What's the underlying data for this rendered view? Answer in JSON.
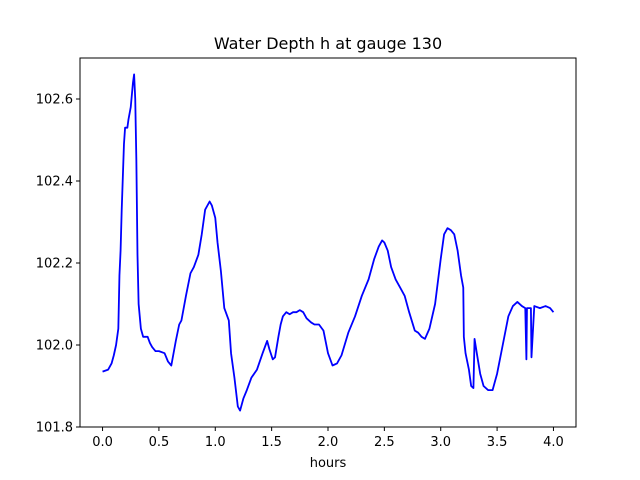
{
  "chart_data": {
    "type": "line",
    "title": "Water Depth h at gauge 130",
    "xlabel": "hours",
    "ylabel": "",
    "xlim": [
      -0.2,
      4.2
    ],
    "ylim": [
      101.8,
      102.7
    ],
    "xticks": [
      0.0,
      0.5,
      1.0,
      1.5,
      2.0,
      2.5,
      3.0,
      3.5,
      4.0
    ],
    "xtick_labels": [
      "0.0",
      "0.5",
      "1.0",
      "1.5",
      "2.0",
      "2.5",
      "3.0",
      "3.5",
      "4.0"
    ],
    "yticks": [
      101.8,
      102.0,
      102.2,
      102.4,
      102.6
    ],
    "ytick_labels": [
      "101.8",
      "102.0",
      "102.2",
      "102.4",
      "102.6"
    ],
    "grid": false,
    "series": [
      {
        "color": "#0000ff",
        "x": [
          0.0,
          0.05,
          0.08,
          0.1,
          0.12,
          0.14,
          0.15,
          0.16,
          0.17,
          0.19,
          0.2,
          0.22,
          0.23,
          0.25,
          0.27,
          0.28,
          0.29,
          0.3,
          0.31,
          0.32,
          0.34,
          0.36,
          0.4,
          0.42,
          0.44,
          0.47,
          0.5,
          0.55,
          0.58,
          0.61,
          0.65,
          0.68,
          0.7,
          0.74,
          0.78,
          0.81,
          0.85,
          0.88,
          0.91,
          0.95,
          0.97,
          1.0,
          1.02,
          1.05,
          1.08,
          1.12,
          1.14,
          1.17,
          1.2,
          1.22,
          1.25,
          1.28,
          1.32,
          1.37,
          1.42,
          1.46,
          1.48,
          1.51,
          1.53,
          1.56,
          1.58,
          1.6,
          1.63,
          1.66,
          1.69,
          1.72,
          1.75,
          1.78,
          1.81,
          1.85,
          1.88,
          1.92,
          1.96,
          2.0,
          2.04,
          2.08,
          2.12,
          2.18,
          2.24,
          2.3,
          2.36,
          2.41,
          2.45,
          2.48,
          2.5,
          2.53,
          2.56,
          2.6,
          2.64,
          2.68,
          2.72,
          2.77,
          2.8,
          2.83,
          2.86,
          2.9,
          2.95,
          3.0,
          3.03,
          3.06,
          3.09,
          3.12,
          3.15,
          3.18,
          3.2,
          3.205,
          3.22,
          3.25,
          3.27,
          3.29,
          3.3,
          3.32,
          3.35,
          3.38,
          3.42,
          3.46,
          3.5,
          3.55,
          3.6,
          3.64,
          3.68,
          3.72,
          3.75,
          3.76,
          3.765,
          3.8,
          3.805,
          3.83,
          3.88,
          3.93,
          3.97,
          4.0
        ],
        "values": [
          101.935,
          101.94,
          101.955,
          101.975,
          102.0,
          102.04,
          102.17,
          102.23,
          102.33,
          102.49,
          102.53,
          102.53,
          102.55,
          102.58,
          102.64,
          102.66,
          102.6,
          102.45,
          102.22,
          102.1,
          102.04,
          102.02,
          102.02,
          102.005,
          101.995,
          101.985,
          101.985,
          101.98,
          101.96,
          101.95,
          102.01,
          102.05,
          102.06,
          102.12,
          102.175,
          102.19,
          102.22,
          102.27,
          102.33,
          102.35,
          102.34,
          102.31,
          102.25,
          102.18,
          102.09,
          102.06,
          101.98,
          101.92,
          101.85,
          101.84,
          101.87,
          101.89,
          101.92,
          101.94,
          101.98,
          102.01,
          101.99,
          101.965,
          101.97,
          102.02,
          102.05,
          102.07,
          102.08,
          102.075,
          102.08,
          102.08,
          102.085,
          102.08,
          102.065,
          102.055,
          102.05,
          102.05,
          102.035,
          101.98,
          101.95,
          101.955,
          101.975,
          102.03,
          102.07,
          102.12,
          102.16,
          102.21,
          102.24,
          102.255,
          102.25,
          102.23,
          102.19,
          102.16,
          102.14,
          102.12,
          102.08,
          102.035,
          102.03,
          102.02,
          102.015,
          102.04,
          102.1,
          102.21,
          102.27,
          102.285,
          102.28,
          102.27,
          102.23,
          102.17,
          102.14,
          102.02,
          101.98,
          101.94,
          101.9,
          101.895,
          102.015,
          101.98,
          101.93,
          101.9,
          101.89,
          101.89,
          101.93,
          102.0,
          102.07,
          102.095,
          102.105,
          102.095,
          102.09,
          101.965,
          102.09,
          102.09,
          101.97,
          102.095,
          102.09,
          102.095,
          102.09,
          102.08
        ]
      }
    ]
  }
}
